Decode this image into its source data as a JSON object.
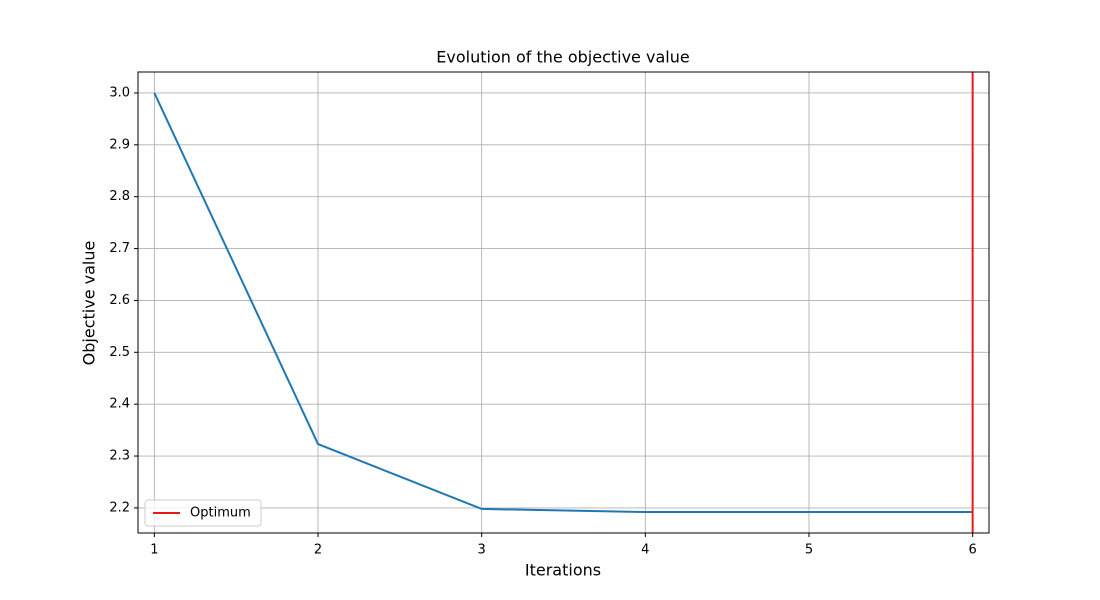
{
  "chart_data": {
    "type": "line",
    "title": "Evolution of the objective value",
    "xlabel": "Iterations",
    "ylabel": "Objective value",
    "x": [
      1,
      2,
      3,
      4,
      5,
      6
    ],
    "series": [
      {
        "color": "#1f77b4",
        "values": [
          3.0,
          2.323,
          2.198,
          2.192,
          2.192,
          2.192
        ]
      }
    ],
    "vline": {
      "name": "Optimum",
      "x": 6,
      "color": "#e8191a"
    },
    "xlim": [
      0.9,
      6.1
    ],
    "ylim": [
      2.1516,
      3.0404
    ],
    "xticks": [
      1,
      2,
      3,
      4,
      5,
      6
    ],
    "yticks": [
      {
        "value": 2.2,
        "label": "2.2"
      },
      {
        "value": 2.3,
        "label": "2.3"
      },
      {
        "value": 2.4,
        "label": "2.4"
      },
      {
        "value": 2.5,
        "label": "2.5"
      },
      {
        "value": 2.6,
        "label": "2.6"
      },
      {
        "value": 2.7,
        "label": "2.7"
      },
      {
        "value": 2.8,
        "label": "2.8"
      },
      {
        "value": 2.9,
        "label": "2.9"
      },
      {
        "value": 3.0,
        "label": "3.0"
      }
    ],
    "grid": true,
    "legend_loc": "lower left"
  }
}
